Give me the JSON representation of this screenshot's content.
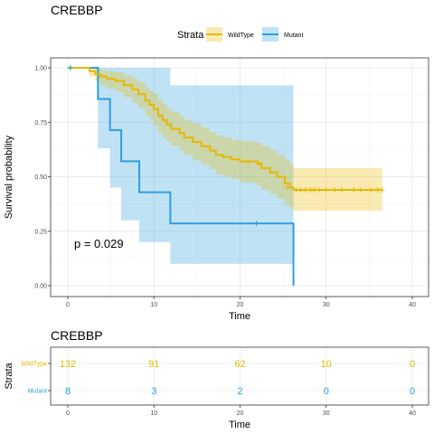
{
  "chart_data": [
    {
      "type": "line",
      "subtype": "kaplan-meier",
      "title": "CREBBP",
      "xlabel": "Time",
      "ylabel": "Survival probability",
      "xlim": [
        0,
        40
      ],
      "ylim": [
        0,
        1
      ],
      "x_ticks": [
        "0",
        "10",
        "20",
        "30",
        "40"
      ],
      "y_ticks": [
        "0.00",
        "0.25",
        "0.50",
        "0.75",
        "1.00"
      ],
      "grid": true,
      "legend_title": "Strata",
      "legend_position": "top",
      "annotation": "p = 0.029",
      "series": [
        {
          "name": "WildType",
          "color": "#E7B800",
          "steps": [
            [
              0,
              1.0
            ],
            [
              1.2,
              1.0
            ],
            [
              2.5,
              0.985
            ],
            [
              3.2,
              0.97
            ],
            [
              3.8,
              0.96
            ],
            [
              4.5,
              0.95
            ],
            [
              5.5,
              0.94
            ],
            [
              6.5,
              0.92
            ],
            [
              7.5,
              0.9
            ],
            [
              8.2,
              0.88
            ],
            [
              9.0,
              0.85
            ],
            [
              9.5,
              0.83
            ],
            [
              10.0,
              0.81
            ],
            [
              10.5,
              0.78
            ],
            [
              11.0,
              0.76
            ],
            [
              11.5,
              0.74
            ],
            [
              12.0,
              0.72
            ],
            [
              13.0,
              0.7
            ],
            [
              13.5,
              0.68
            ],
            [
              14.5,
              0.66
            ],
            [
              15.5,
              0.64
            ],
            [
              16.5,
              0.62
            ],
            [
              17.2,
              0.6
            ],
            [
              18.0,
              0.59
            ],
            [
              19.0,
              0.58
            ],
            [
              20.0,
              0.57
            ],
            [
              21.5,
              0.57
            ],
            [
              22.0,
              0.56
            ],
            [
              22.5,
              0.54
            ],
            [
              23.5,
              0.52
            ],
            [
              24.3,
              0.5
            ],
            [
              25.2,
              0.47
            ],
            [
              25.8,
              0.45
            ],
            [
              26.2,
              0.44
            ],
            [
              36.5,
              0.44
            ]
          ],
          "lower": [
            [
              0,
              1.0
            ],
            [
              1.2,
              1.0
            ],
            [
              2.5,
              0.96
            ],
            [
              3.2,
              0.94
            ],
            [
              3.8,
              0.92
            ],
            [
              4.5,
              0.905
            ],
            [
              5.5,
              0.89
            ],
            [
              6.5,
              0.865
            ],
            [
              7.5,
              0.84
            ],
            [
              8.2,
              0.815
            ],
            [
              9.0,
              0.78
            ],
            [
              9.5,
              0.76
            ],
            [
              10.0,
              0.735
            ],
            [
              10.5,
              0.7
            ],
            [
              11.0,
              0.68
            ],
            [
              11.5,
              0.66
            ],
            [
              12.0,
              0.64
            ],
            [
              13.0,
              0.62
            ],
            [
              13.5,
              0.6
            ],
            [
              14.5,
              0.575
            ],
            [
              15.5,
              0.555
            ],
            [
              16.5,
              0.535
            ],
            [
              17.2,
              0.51
            ],
            [
              18.0,
              0.5
            ],
            [
              19.0,
              0.49
            ],
            [
              20.0,
              0.475
            ],
            [
              21.5,
              0.47
            ],
            [
              22.0,
              0.46
            ],
            [
              22.5,
              0.44
            ],
            [
              23.5,
              0.42
            ],
            [
              24.3,
              0.4
            ],
            [
              25.2,
              0.37
            ],
            [
              25.8,
              0.355
            ],
            [
              26.2,
              0.345
            ],
            [
              36.5,
              0.345
            ]
          ],
          "upper": [
            [
              0,
              1.0
            ],
            [
              1.2,
              1.0
            ],
            [
              2.5,
              1.0
            ],
            [
              3.2,
              1.0
            ],
            [
              3.8,
              0.99
            ],
            [
              4.5,
              0.985
            ],
            [
              5.5,
              0.98
            ],
            [
              6.5,
              0.965
            ],
            [
              7.5,
              0.95
            ],
            [
              8.2,
              0.935
            ],
            [
              9.0,
              0.91
            ],
            [
              9.5,
              0.895
            ],
            [
              10.0,
              0.88
            ],
            [
              10.5,
              0.855
            ],
            [
              11.0,
              0.835
            ],
            [
              11.5,
              0.815
            ],
            [
              12.0,
              0.8
            ],
            [
              13.0,
              0.78
            ],
            [
              13.5,
              0.76
            ],
            [
              14.5,
              0.745
            ],
            [
              15.5,
              0.725
            ],
            [
              16.5,
              0.705
            ],
            [
              17.2,
              0.69
            ],
            [
              18.0,
              0.68
            ],
            [
              19.0,
              0.67
            ],
            [
              20.0,
              0.665
            ],
            [
              21.5,
              0.66
            ],
            [
              22.0,
              0.655
            ],
            [
              22.5,
              0.64
            ],
            [
              23.5,
              0.62
            ],
            [
              24.3,
              0.6
            ],
            [
              25.2,
              0.58
            ],
            [
              25.8,
              0.56
            ],
            [
              26.2,
              0.54
            ],
            [
              36.5,
              0.54
            ]
          ],
          "censored": [
            [
              0.3,
              1.0
            ],
            [
              21.0,
              0.57
            ],
            [
              22.2,
              0.56
            ],
            [
              25.5,
              0.45
            ],
            [
              26.5,
              0.44
            ],
            [
              27.0,
              0.44
            ],
            [
              27.6,
              0.44
            ],
            [
              28.2,
              0.44
            ],
            [
              28.6,
              0.44
            ],
            [
              29.2,
              0.44
            ],
            [
              30.0,
              0.44
            ],
            [
              31.0,
              0.44
            ],
            [
              31.8,
              0.44
            ],
            [
              33.2,
              0.44
            ],
            [
              34.0,
              0.44
            ],
            [
              35.2,
              0.44
            ],
            [
              36.0,
              0.44
            ],
            [
              36.5,
              0.44
            ]
          ]
        },
        {
          "name": "Mutant",
          "color": "#2E9FDF",
          "steps": [
            [
              0,
              1.0
            ],
            [
              3.5,
              0.857
            ],
            [
              4.9,
              0.714
            ],
            [
              6.2,
              0.571
            ],
            [
              8.3,
              0.429
            ],
            [
              11.9,
              0.286
            ],
            [
              26.2,
              0.0
            ]
          ],
          "lower": [
            [
              0,
              1.0
            ],
            [
              3.5,
              0.63
            ],
            [
              4.9,
              0.45
            ],
            [
              6.2,
              0.3
            ],
            [
              8.3,
              0.2
            ],
            [
              11.9,
              0.1
            ],
            [
              26.2,
              0.1
            ]
          ],
          "upper": [
            [
              0,
              1.0
            ],
            [
              3.5,
              1.0
            ],
            [
              4.9,
              1.0
            ],
            [
              6.2,
              1.0
            ],
            [
              8.3,
              1.0
            ],
            [
              11.9,
              0.92
            ],
            [
              26.2,
              0.92
            ]
          ],
          "censored": [
            [
              0.3,
              1.0
            ],
            [
              21.9,
              0.286
            ]
          ]
        }
      ]
    },
    {
      "type": "table",
      "title": "CREBBP",
      "xlabel": "Time",
      "ylabel": "Strata",
      "xlim": [
        0,
        40
      ],
      "x_ticks": [
        "0",
        "10",
        "20",
        "30",
        "40"
      ],
      "columns": [
        0,
        10,
        20,
        30,
        40
      ],
      "rows": [
        {
          "name": "WildType",
          "color": "#E7B800",
          "values": [
            "132",
            "91",
            "62",
            "10",
            "0"
          ]
        },
        {
          "name": "Mutant",
          "color": "#2E9FDF",
          "values": [
            "8",
            "3",
            "2",
            "0",
            "0"
          ]
        }
      ]
    }
  ]
}
